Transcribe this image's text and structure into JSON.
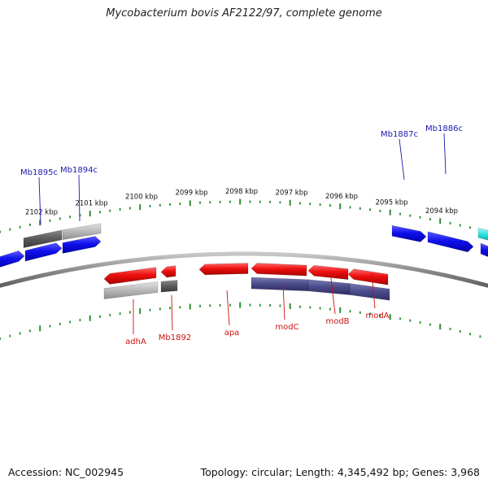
{
  "title": "Mycobacterium bovis AF2122/97, complete genome",
  "footer": {
    "accession": "Accession: NC_002945",
    "summary": "Topology: circular; Length: 4,345,492 bp; Genes: 3,968"
  },
  "colors": {
    "backbone": "#8a8a8a",
    "tick": "#2e8b2e",
    "forward_gene": "#1010ee",
    "forward_label": "#1a1aaa",
    "reverse_gene": "#ee1010",
    "reverse_label": "#cc1111",
    "complement_dark": "#5a5a5a",
    "complement_light": "#b8b8b8",
    "operon": "#4a4a8a",
    "cyan_gene": "#22dddd"
  },
  "ruler": {
    "unit": "kbp",
    "ticks": [
      {
        "kbp": 2102,
        "label": "2102 kbp"
      },
      {
        "kbp": 2101,
        "label": "2101 kbp"
      },
      {
        "kbp": 2100,
        "label": "2100 kbp"
      },
      {
        "kbp": 2099,
        "label": "2099 kbp"
      },
      {
        "kbp": 2098,
        "label": "2098 kbp"
      },
      {
        "kbp": 2097,
        "label": "2097 kbp"
      },
      {
        "kbp": 2096,
        "label": "2096 kbp"
      },
      {
        "kbp": 2095,
        "label": "2095 kbp"
      },
      {
        "kbp": 2094,
        "label": "2094 kbp"
      }
    ]
  },
  "forward_labels": [
    "Mb1895c",
    "Mb1894c",
    "Mb1887c",
    "Mb1886c"
  ],
  "reverse_labels": [
    "adhA",
    "Mb1892",
    "apa",
    "modC",
    "modB",
    "modA"
  ]
}
